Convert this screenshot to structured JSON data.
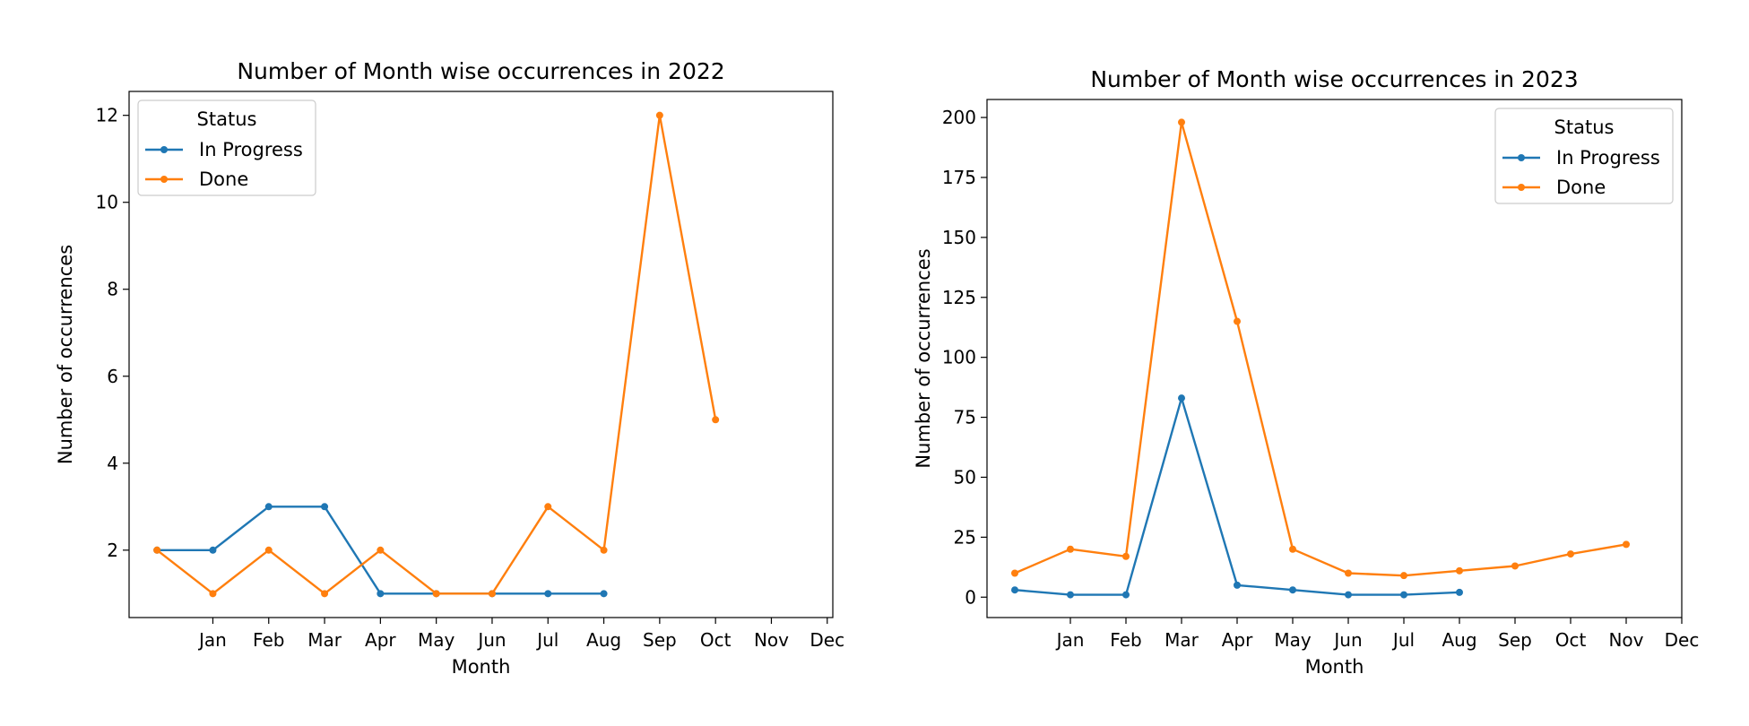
{
  "chart_data": [
    {
      "type": "line",
      "title": "Number of Month wise occurrences in 2022",
      "xlabel": "Month",
      "ylabel": "Number of occurrences",
      "x_tick_labels": [
        "Jan",
        "Feb",
        "Mar",
        "Apr",
        "May",
        "Jun",
        "Jul",
        "Aug",
        "Sep",
        "Oct",
        "Nov",
        "Dec"
      ],
      "xlim": [
        -0.5,
        12.1
      ],
      "ylim": [
        0.45,
        12.55
      ],
      "y_ticks": [
        2,
        4,
        6,
        8,
        10,
        12
      ],
      "grid": false,
      "legend": {
        "title": "Status",
        "placement": "upper-left"
      },
      "series": [
        {
          "name": "In Progress",
          "color": "#1f77b4",
          "x": [
            0,
            1,
            2,
            3,
            4,
            5,
            6,
            7,
            8
          ],
          "values": [
            2,
            2,
            3,
            3,
            1,
            1,
            1,
            1,
            1
          ]
        },
        {
          "name": "Done",
          "color": "#ff7f0e",
          "x": [
            0,
            1,
            2,
            3,
            4,
            5,
            6,
            7,
            8,
            9,
            10
          ],
          "values": [
            2,
            1,
            2,
            1,
            2,
            1,
            1,
            3,
            2,
            12,
            5
          ]
        }
      ]
    },
    {
      "type": "line",
      "title": "Number of Month wise occurrences in 2023",
      "xlabel": "Month",
      "ylabel": "Number of occurrences",
      "x_tick_labels": [
        "Jan",
        "Feb",
        "Mar",
        "Apr",
        "May",
        "Jun",
        "Jul",
        "Aug",
        "Sep",
        "Oct",
        "Nov",
        "Dec"
      ],
      "xlim": [
        -0.5,
        12.0
      ],
      "ylim": [
        -8.5,
        207.5
      ],
      "y_ticks": [
        0,
        25,
        50,
        75,
        100,
        125,
        150,
        175,
        200
      ],
      "grid": false,
      "legend": {
        "title": "Status",
        "placement": "upper-right"
      },
      "series": [
        {
          "name": "In Progress",
          "color": "#1f77b4",
          "x": [
            0,
            1,
            2,
            3,
            4,
            5,
            6,
            7,
            8
          ],
          "values": [
            3,
            1,
            1,
            83,
            5,
            3,
            1,
            1,
            2
          ]
        },
        {
          "name": "Done",
          "color": "#ff7f0e",
          "x": [
            0,
            1,
            2,
            3,
            4,
            5,
            6,
            7,
            8,
            9,
            10,
            11
          ],
          "values": [
            10,
            20,
            17,
            198,
            115,
            20,
            10,
            9,
            11,
            13,
            18,
            22
          ]
        }
      ]
    }
  ]
}
